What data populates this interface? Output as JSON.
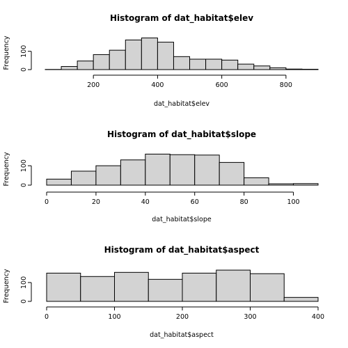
{
  "chart_data": [
    {
      "type": "bar",
      "title": "Histogram of dat_habitat$elev",
      "xlabel": "dat_habitat$elev",
      "ylabel": "Frequency",
      "breaks": [
        50,
        100,
        150,
        200,
        250,
        300,
        350,
        400,
        450,
        500,
        550,
        600,
        650,
        700,
        750,
        800,
        850,
        900
      ],
      "values": [
        1,
        17,
        47,
        82,
        106,
        162,
        173,
        150,
        71,
        57,
        57,
        52,
        30,
        20,
        10,
        3,
        2
      ],
      "xticks": [
        200,
        400,
        600,
        800
      ],
      "yticks": [
        0,
        100
      ],
      "ylim": [
        0,
        175
      ]
    },
    {
      "type": "bar",
      "title": "Histogram of dat_habitat$slope",
      "xlabel": "dat_habitat$slope",
      "ylabel": "Frequency",
      "breaks": [
        0,
        10,
        20,
        30,
        40,
        50,
        60,
        70,
        80,
        90,
        100,
        110
      ],
      "values": [
        31,
        72,
        100,
        130,
        160,
        157,
        155,
        117,
        38,
        7,
        8
      ],
      "xticks": [
        0,
        20,
        40,
        60,
        80,
        100
      ],
      "yticks": [
        0,
        100
      ],
      "ylim": [
        0,
        165
      ]
    },
    {
      "type": "bar",
      "title": "Histogram of dat_habitat$aspect",
      "xlabel": "dat_habitat$aspect",
      "ylabel": "Frequency",
      "breaks": [
        0,
        50,
        100,
        150,
        200,
        250,
        300,
        350,
        400
      ],
      "values": [
        150,
        132,
        154,
        117,
        150,
        166,
        147,
        21
      ],
      "xticks": [
        0,
        100,
        200,
        300,
        400
      ],
      "yticks": [
        0,
        100
      ],
      "ylim": [
        0,
        170
      ]
    }
  ]
}
